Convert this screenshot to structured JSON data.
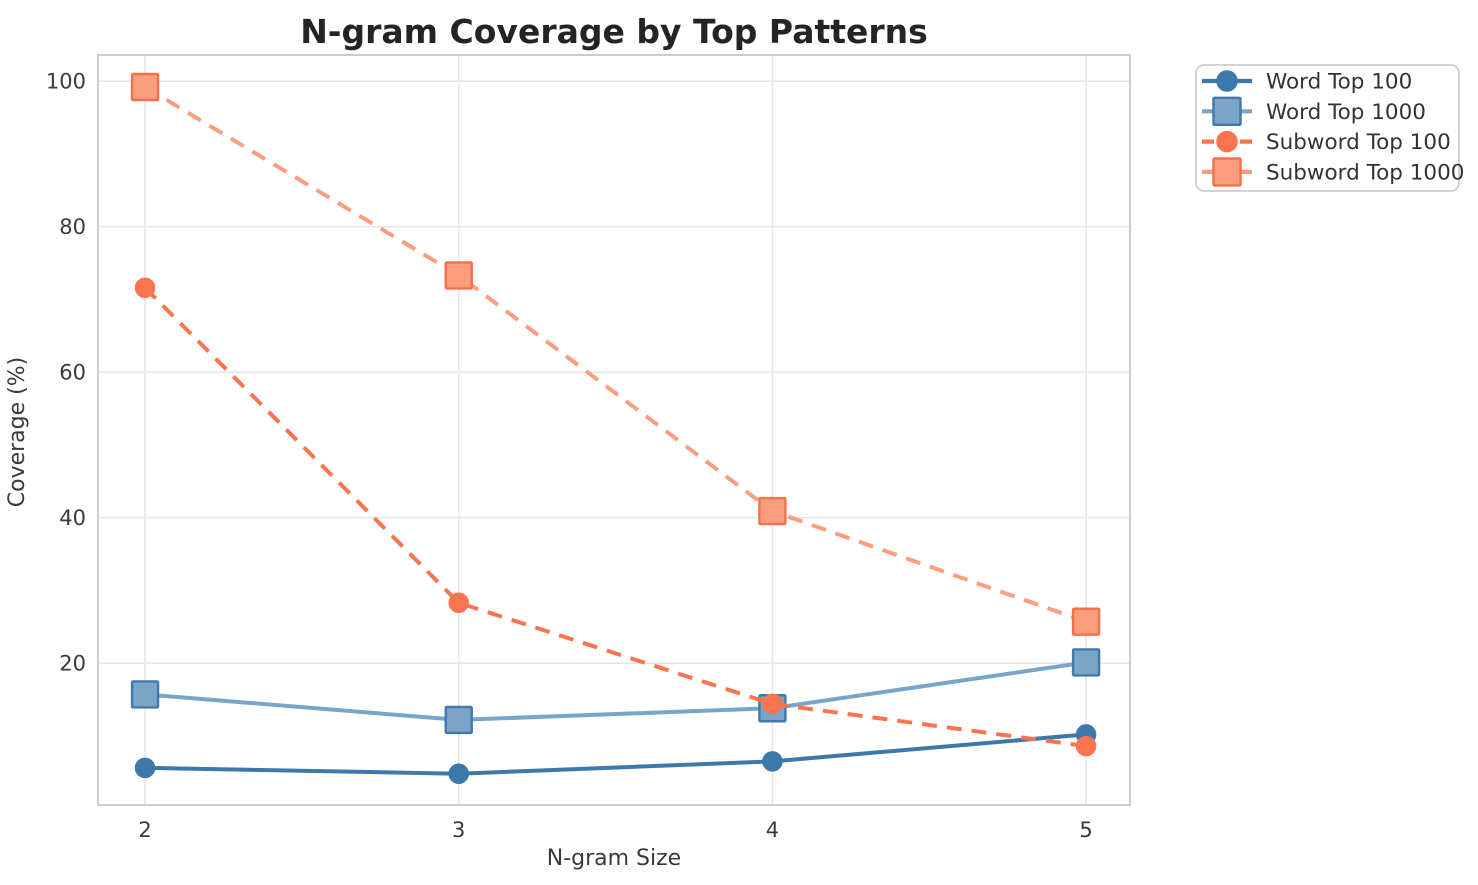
{
  "chart_data": {
    "type": "line",
    "title": "N-gram Coverage by Top Patterns",
    "xlabel": "N-gram Size",
    "ylabel": "Coverage (%)",
    "x": [
      2,
      3,
      4,
      5
    ],
    "xticks": [
      "2",
      "3",
      "4",
      "5"
    ],
    "yticks": [
      20,
      40,
      60,
      80,
      100
    ],
    "xlim": [
      1.85,
      5.14
    ],
    "ylim": [
      0.5,
      103.6
    ],
    "grid": true,
    "legend": {
      "position": "outside-upper-right"
    },
    "series": [
      {
        "name": "Word Top 100",
        "values": [
          5.6,
          4.8,
          6.5,
          10.2
        ],
        "color": "#3D78AB",
        "marker": "circle",
        "marker_edge": "#3D78AB",
        "linestyle": "solid"
      },
      {
        "name": "Word Top 1000",
        "values": [
          15.7,
          12.2,
          13.8,
          20.1
        ],
        "color": "#79A5C9",
        "marker": "square",
        "marker_edge": "#4279A9",
        "linestyle": "solid"
      },
      {
        "name": "Subword Top 100",
        "values": [
          71.6,
          28.3,
          14.4,
          8.6
        ],
        "color": "#FA7450",
        "marker": "circle",
        "marker_edge": "#FA7450",
        "linestyle": "dashed"
      },
      {
        "name": "Subword Top 1000",
        "values": [
          99.2,
          73.3,
          40.9,
          25.7
        ],
        "color": "#FB9E80",
        "marker": "square",
        "marker_edge": "#F3714A",
        "linestyle": "dashed"
      }
    ],
    "colors": {
      "grid": "#e7e7e7",
      "frame": "#cccccc",
      "tick_text": "#3a3a3a",
      "title_text": "#242424",
      "legend_border": "#cccccc",
      "background": "#ffffff"
    }
  }
}
